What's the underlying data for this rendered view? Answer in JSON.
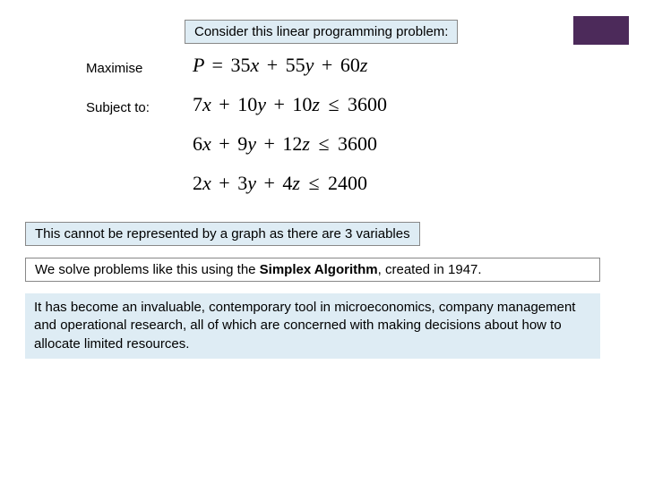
{
  "colors": {
    "light_blue": "#deecf4",
    "dark_purple": "#4c2a5a",
    "border": "#888888",
    "text": "#000000",
    "background": "#ffffff"
  },
  "corner_box": {
    "bg": "#4c2a5a"
  },
  "title": {
    "text": "Consider this linear programming problem:",
    "bg": "#deecf4"
  },
  "labels": {
    "maximise": "Maximise",
    "subject_to": "Subject to:"
  },
  "equations": {
    "objective": {
      "lhs_var": "P",
      "terms": [
        "35x",
        "55y",
        "60z"
      ],
      "op": "="
    },
    "c1": {
      "terms": [
        "7x",
        "10y",
        "10z"
      ],
      "rel": "≤",
      "rhs": "3600"
    },
    "c2": {
      "terms": [
        "6x",
        "9y",
        "12z"
      ],
      "rel": "≤",
      "rhs": "3600"
    },
    "c3": {
      "terms": [
        "2x",
        "3y",
        "4z"
      ],
      "rel": "≤",
      "rhs": "2400"
    }
  },
  "note1": {
    "text": "This cannot be represented by a graph as there are 3 variables",
    "bg": "#deecf4"
  },
  "note2": {
    "pre": "We solve problems like this using the ",
    "bold": "Simplex Algorithm",
    "post": ", created in 1947.",
    "bg": "#ffffff"
  },
  "note3": {
    "text": "It has become an invaluable, contemporary tool in microeconomics, company management and operational research, all of which are concerned with making decisions about how to allocate limited resources.",
    "bg": "#deecf4"
  }
}
